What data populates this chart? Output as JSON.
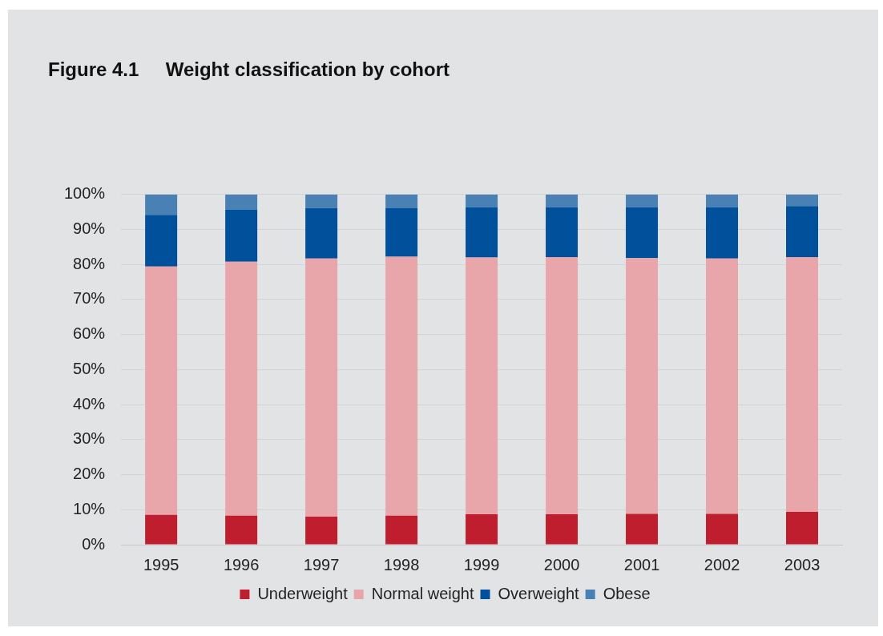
{
  "chart_data": {
    "type": "bar",
    "title": "Figure 4.1     Weight classification by cohort",
    "categories": [
      "1995",
      "1996",
      "1997",
      "1998",
      "1999",
      "2000",
      "2001",
      "2002",
      "2003"
    ],
    "stacked": true,
    "series": [
      {
        "name": "Underweight",
        "color": "#be1e2d",
        "values": [
          8.5,
          8.3,
          8.0,
          8.3,
          8.7,
          8.7,
          8.8,
          8.8,
          9.4
        ]
      },
      {
        "name": "Normal weight",
        "color": "#e8a6ab",
        "values": [
          70.9,
          72.5,
          73.7,
          73.9,
          73.3,
          73.4,
          73.0,
          72.9,
          72.7
        ]
      },
      {
        "name": "Overweight",
        "color": "#00509b",
        "values": [
          14.8,
          14.9,
          14.4,
          14.0,
          14.4,
          14.3,
          14.6,
          14.7,
          14.6
        ]
      },
      {
        "name": "Obese",
        "color": "#4a81b4",
        "values": [
          5.8,
          4.3,
          3.9,
          3.8,
          3.6,
          3.6,
          3.6,
          3.6,
          3.3
        ]
      }
    ],
    "ylim": [
      0,
      100
    ],
    "yticks": [
      {
        "value": 0,
        "label": "0%"
      },
      {
        "value": 10,
        "label": "10%"
      },
      {
        "value": 20,
        "label": "20%"
      },
      {
        "value": 30,
        "label": "30%"
      },
      {
        "value": 40,
        "label": "40%"
      },
      {
        "value": 50,
        "label": "50%"
      },
      {
        "value": 60,
        "label": "60%"
      },
      {
        "value": 70,
        "label": "70%"
      },
      {
        "value": 80,
        "label": "80%"
      },
      {
        "value": 90,
        "label": "90%"
      },
      {
        "value": 100,
        "label": "100%"
      }
    ],
    "grid": "y",
    "legend": "bottom"
  }
}
